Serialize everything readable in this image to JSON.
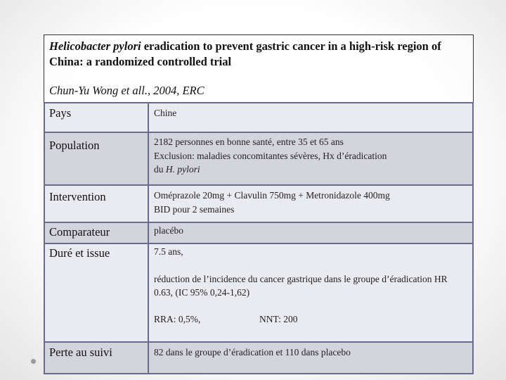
{
  "header": {
    "title_italic": "Helicobacter pylori",
    "title_rest": " eradication to prevent gastric cancer  in a high-risk region of China: a randomized controlled trial",
    "authors": "Chun-Yu Wong et all., 2004, ERC"
  },
  "rows": [
    {
      "label": "Pays",
      "lines": [
        "Chine"
      ]
    },
    {
      "label": "Population",
      "lines": [
        "2182 personnes en bonne santé, entre 35 et 65 ans",
        "Exclusion: maladies concomitantes sévères, Hx d’éradication"
      ],
      "tail_prefix": "du ",
      "tail_italic": "H. pylori"
    },
    {
      "label": "Intervention",
      "lines": [
        "Oméprazole 20mg + Clavulin 750mg + Metronidazole 400mg",
        "BID pour 2 semaines"
      ]
    },
    {
      "label": "Comparateur",
      "lines": [
        "placébo"
      ]
    },
    {
      "label": "Duré et issue",
      "lines": [
        "7.5 ans,",
        "réduction de l’incidence du cancer gastrique dans le groupe d’éradication HR 0.63, (IC 95% 0,24-1,62)"
      ],
      "rra": "RRA: 0,5%,",
      "nnt": "NNT: 200"
    },
    {
      "label": "Perte au suivi",
      "lines": [
        "82 dans le groupe d’éradication et 110 dans placebo"
      ]
    }
  ]
}
